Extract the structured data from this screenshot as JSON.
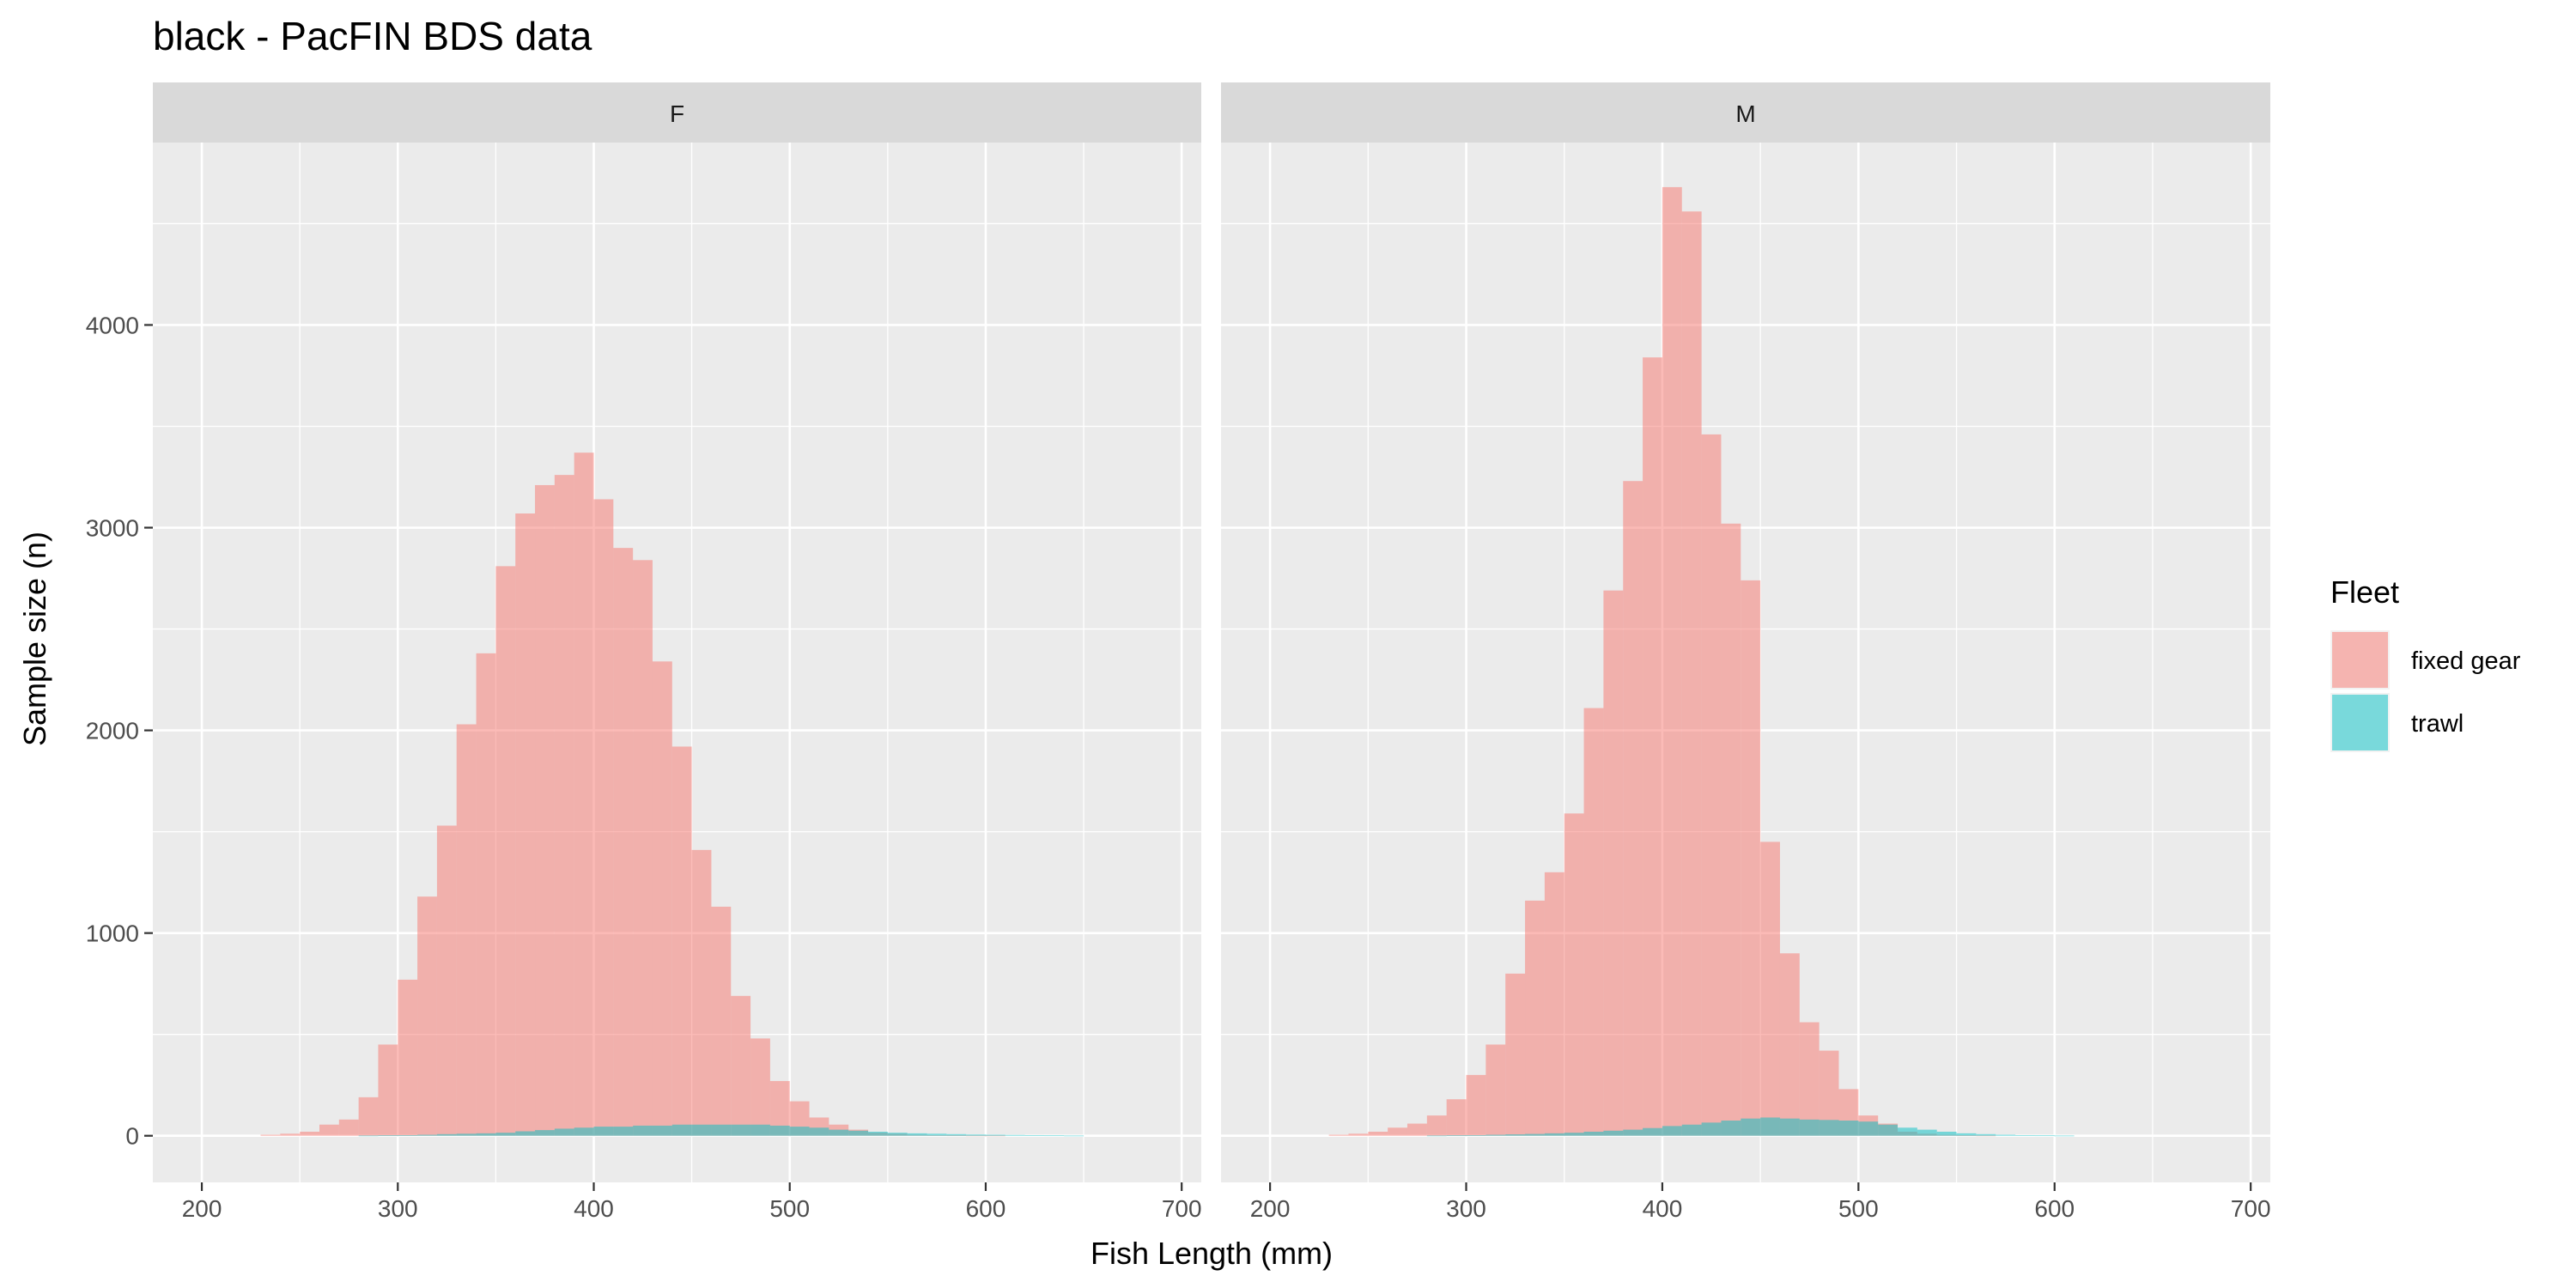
{
  "chart_data": {
    "type": "bar",
    "title": "black - PacFIN BDS data",
    "xlabel": "Fish Length (mm)",
    "ylabel": "Sample size (n)",
    "xlim": [
      175,
      710
    ],
    "ylim": [
      -230,
      4900
    ],
    "x_ticks": [
      200,
      300,
      400,
      500,
      600,
      700
    ],
    "y_ticks": [
      0,
      1000,
      2000,
      3000,
      4000
    ],
    "bin_width": 10,
    "grid": true,
    "legend": {
      "title": "Fleet",
      "position": "right",
      "entries": [
        {
          "label": "fixed gear",
          "color": "#F8766D"
        },
        {
          "label": "trawl",
          "color": "#00BFC4"
        }
      ]
    },
    "colors": {
      "fixed gear": "#F8766D",
      "trawl": "#00BFC4"
    },
    "fill_opacity": 0.5,
    "bin_left_edges": [
      230,
      240,
      250,
      260,
      270,
      280,
      290,
      300,
      310,
      320,
      330,
      340,
      350,
      360,
      370,
      380,
      390,
      400,
      410,
      420,
      430,
      440,
      450,
      460,
      470,
      480,
      490,
      500,
      510,
      520,
      530,
      540,
      550,
      560,
      570,
      580,
      590,
      600,
      610,
      620,
      630,
      640
    ],
    "panels": [
      {
        "strip": "F",
        "series": [
          {
            "name": "fixed gear",
            "values": [
              5,
              10,
              20,
              55,
              80,
              190,
              450,
              770,
              1180,
              1530,
              2030,
              2380,
              2810,
              3070,
              3210,
              3260,
              3370,
              3140,
              2900,
              2840,
              2340,
              1920,
              1410,
              1130,
              690,
              480,
              270,
              170,
              90,
              55,
              30,
              15,
              10,
              5,
              3,
              2,
              1,
              1,
              0,
              0,
              0,
              0
            ]
          },
          {
            "name": "trawl",
            "values": [
              0,
              0,
              0,
              0,
              0,
              1,
              2,
              3,
              5,
              8,
              10,
              12,
              15,
              22,
              28,
              35,
              40,
              45,
              45,
              50,
              50,
              55,
              55,
              55,
              55,
              55,
              50,
              45,
              40,
              30,
              25,
              20,
              15,
              12,
              10,
              8,
              6,
              5,
              4,
              3,
              2,
              1
            ]
          }
        ]
      },
      {
        "strip": "M",
        "series": [
          {
            "name": "fixed gear",
            "values": [
              5,
              10,
              20,
              40,
              60,
              100,
              180,
              300,
              450,
              800,
              1160,
              1300,
              1590,
              2110,
              2690,
              3230,
              3840,
              4680,
              4560,
              3460,
              3020,
              2740,
              1450,
              900,
              560,
              420,
              230,
              100,
              60,
              20,
              10,
              5,
              2,
              1,
              0,
              0,
              0,
              0,
              0,
              0,
              0,
              0
            ]
          },
          {
            "name": "trawl",
            "values": [
              0,
              0,
              0,
              0,
              0,
              1,
              2,
              3,
              5,
              7,
              9,
              12,
              15,
              20,
              25,
              30,
              38,
              48,
              55,
              65,
              75,
              85,
              90,
              85,
              80,
              78,
              75,
              70,
              55,
              40,
              30,
              20,
              12,
              8,
              5,
              3,
              2,
              1,
              0,
              0,
              0,
              0
            ]
          }
        ]
      }
    ]
  }
}
